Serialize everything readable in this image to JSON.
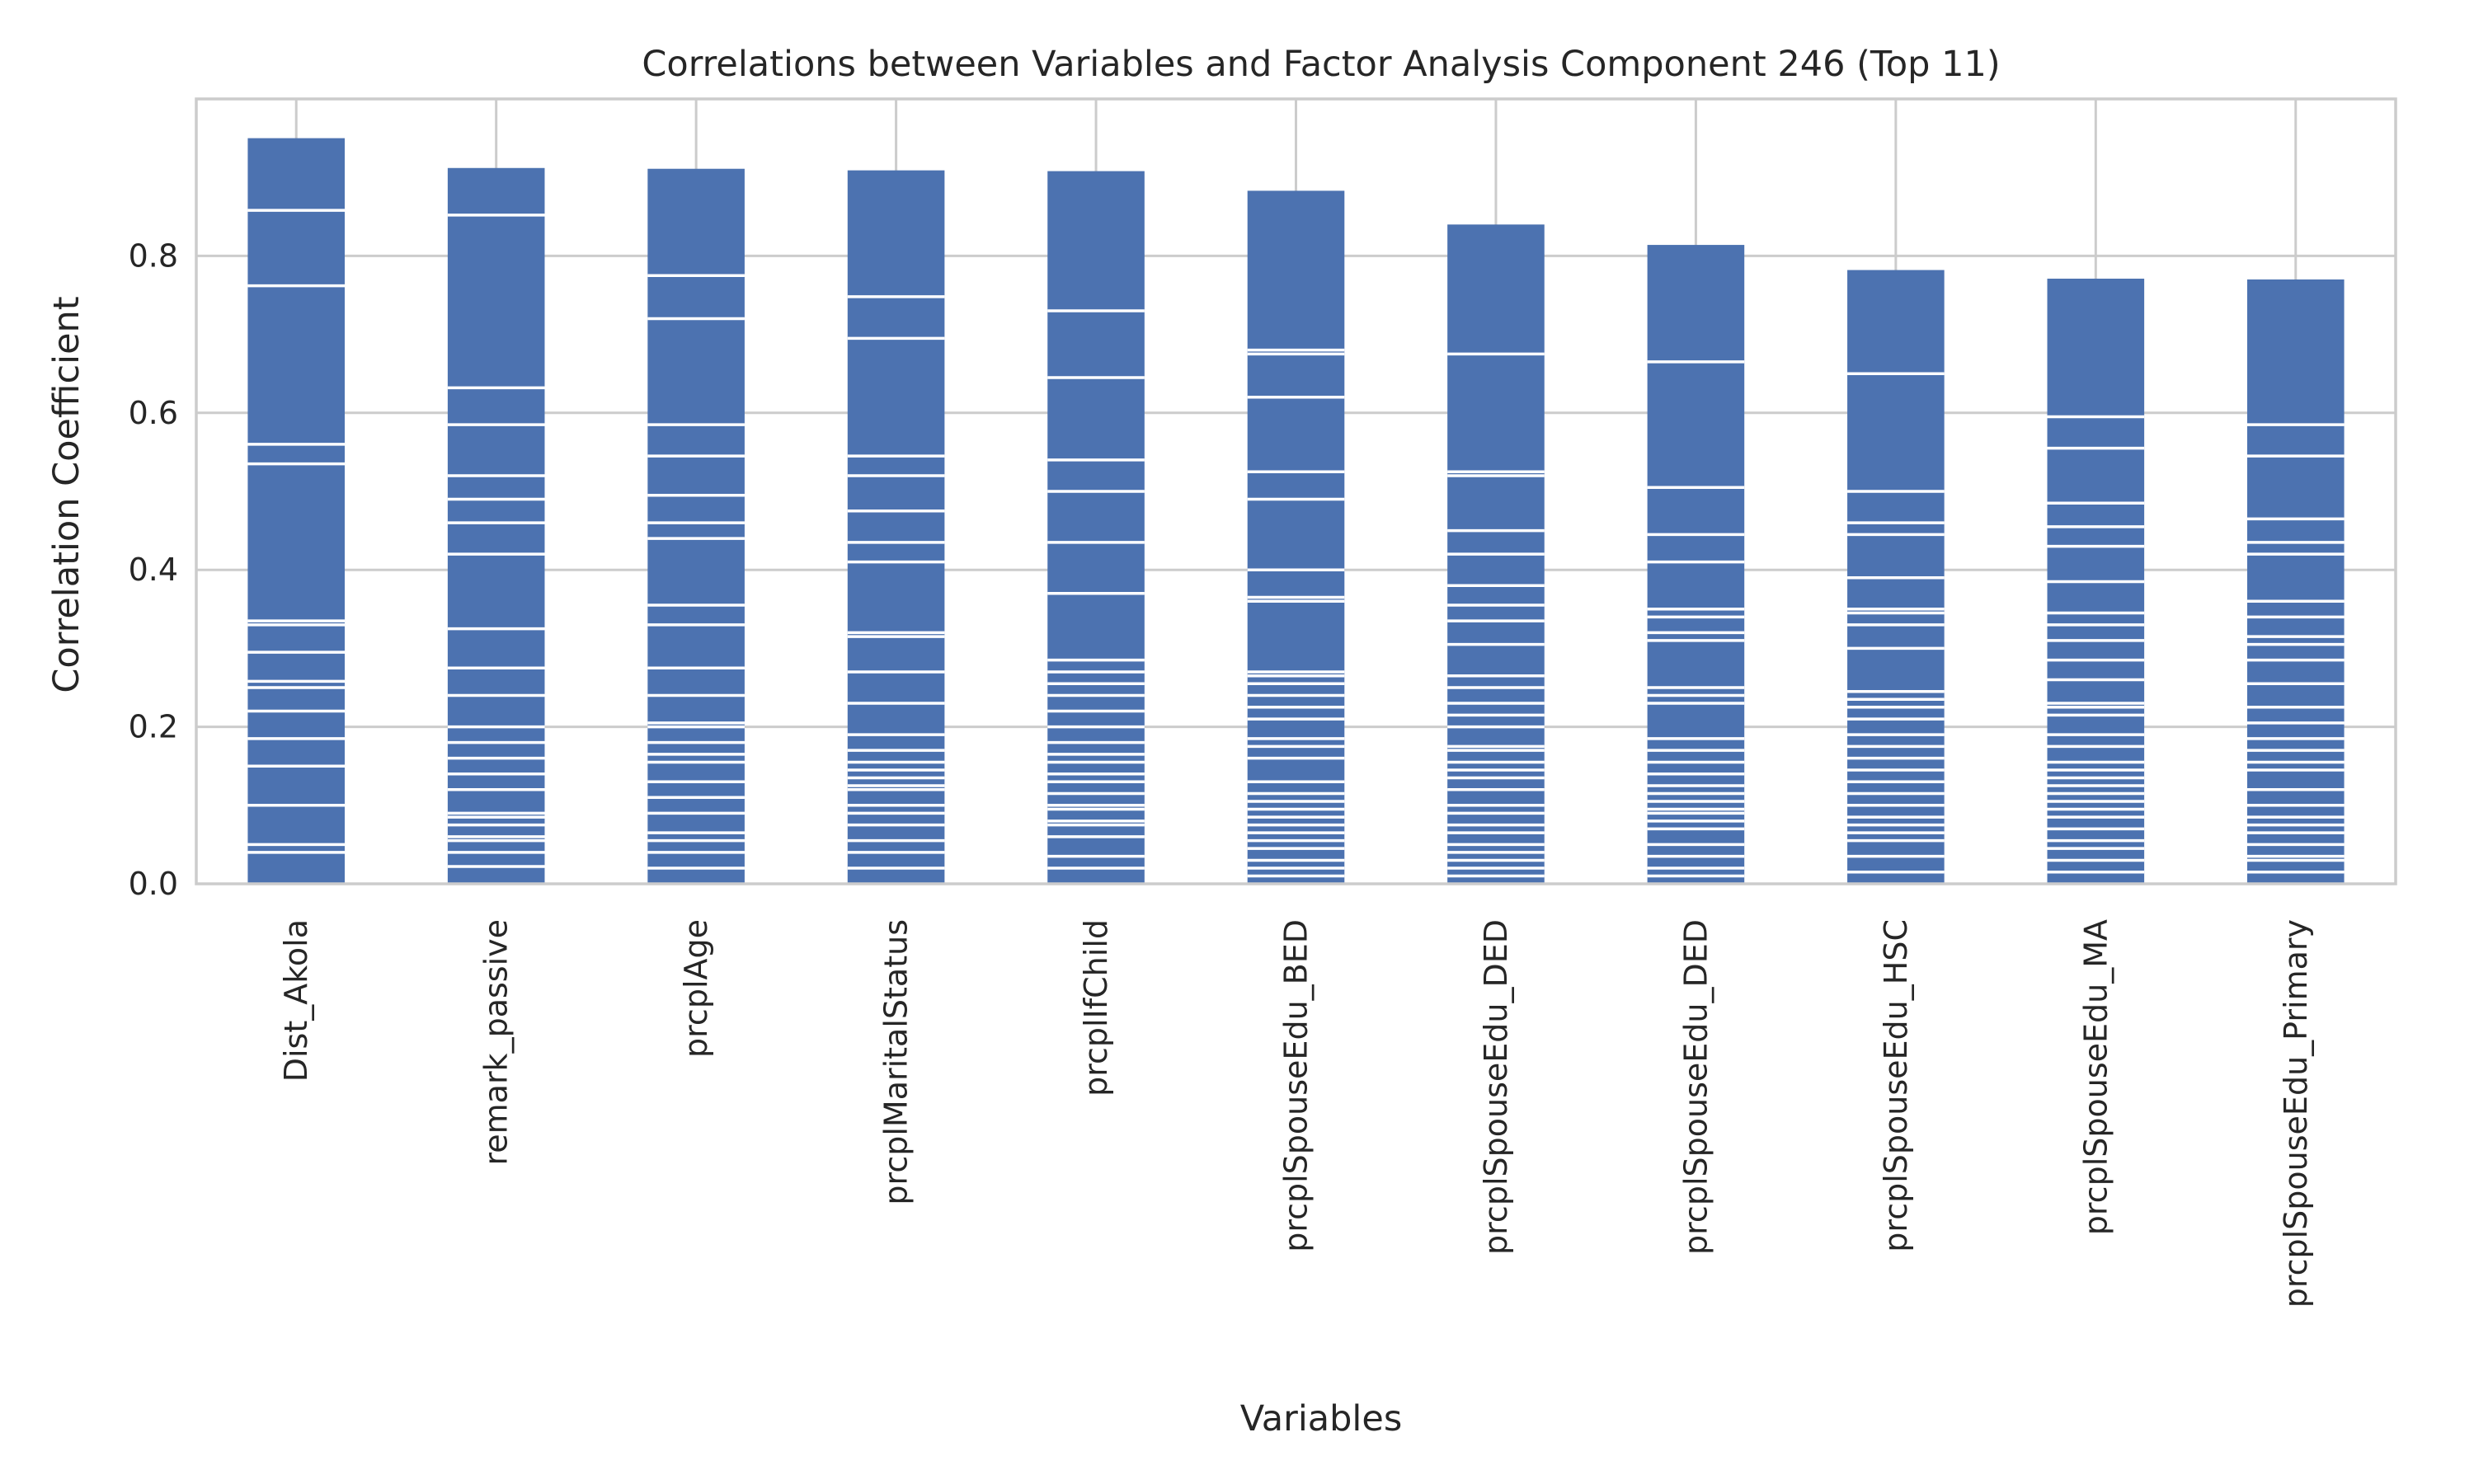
{
  "chart_data": {
    "type": "bar",
    "title": "Correlations between Variables and Factor Analysis Component 246 (Top 11)",
    "xlabel": "Variables",
    "ylabel": "Correlation Coefficient",
    "ylim": [
      0,
      1.0
    ],
    "yticks": [
      0.0,
      0.2,
      0.4,
      0.6,
      0.8
    ],
    "ytick_labels": [
      "0.0",
      "0.2",
      "0.4",
      "0.6",
      "0.8"
    ],
    "grid": true,
    "legend": "none",
    "color": "#4c72b0",
    "categories": [
      "Dist_Akola",
      "remark_passive",
      "prcplAge",
      "prcplMaritalStatus",
      "prcplIfChild",
      "prcplSpouseEdu_BED",
      "prcplSpouseEdu_DED",
      "prcplSpouseEdu_DED",
      "prcplSpouseEdu_HSC",
      "prcplSpouseEdu_MA",
      "prcplSpouseEdu_Primary"
    ],
    "values": [
      0.95,
      0.912,
      0.911,
      0.909,
      0.908,
      0.883,
      0.84,
      0.814,
      0.782,
      0.771,
      0.77
    ],
    "stack_boundaries": [
      [
        0.04,
        0.05,
        0.1,
        0.15,
        0.185,
        0.22,
        0.25,
        0.258,
        0.295,
        0.33,
        0.335,
        0.535,
        0.56,
        0.762,
        0.858
      ],
      [
        0.022,
        0.04,
        0.055,
        0.06,
        0.075,
        0.085,
        0.09,
        0.12,
        0.14,
        0.16,
        0.18,
        0.2,
        0.24,
        0.275,
        0.325,
        0.42,
        0.46,
        0.49,
        0.52,
        0.585,
        0.632,
        0.852
      ],
      [
        0.02,
        0.04,
        0.055,
        0.065,
        0.09,
        0.11,
        0.13,
        0.155,
        0.165,
        0.18,
        0.2,
        0.205,
        0.24,
        0.275,
        0.33,
        0.355,
        0.44,
        0.46,
        0.495,
        0.545,
        0.585,
        0.72,
        0.775
      ],
      [
        0.02,
        0.04,
        0.055,
        0.075,
        0.09,
        0.1,
        0.12,
        0.125,
        0.135,
        0.145,
        0.155,
        0.17,
        0.19,
        0.23,
        0.27,
        0.315,
        0.32,
        0.41,
        0.435,
        0.475,
        0.52,
        0.545,
        0.695,
        0.748
      ],
      [
        0.02,
        0.035,
        0.06,
        0.075,
        0.08,
        0.095,
        0.1,
        0.115,
        0.13,
        0.14,
        0.155,
        0.165,
        0.18,
        0.2,
        0.22,
        0.24,
        0.255,
        0.27,
        0.285,
        0.37,
        0.435,
        0.5,
        0.54,
        0.645,
        0.73
      ],
      [
        0.01,
        0.02,
        0.03,
        0.045,
        0.055,
        0.065,
        0.075,
        0.085,
        0.095,
        0.105,
        0.115,
        0.13,
        0.16,
        0.175,
        0.185,
        0.21,
        0.225,
        0.24,
        0.255,
        0.265,
        0.27,
        0.36,
        0.365,
        0.4,
        0.49,
        0.525,
        0.62,
        0.675,
        0.68
      ],
      [
        0.01,
        0.02,
        0.03,
        0.04,
        0.05,
        0.065,
        0.075,
        0.09,
        0.1,
        0.12,
        0.135,
        0.145,
        0.155,
        0.17,
        0.175,
        0.2,
        0.215,
        0.23,
        0.25,
        0.265,
        0.305,
        0.335,
        0.355,
        0.38,
        0.42,
        0.45,
        0.52,
        0.525,
        0.675
      ],
      [
        0.01,
        0.02,
        0.035,
        0.05,
        0.07,
        0.08,
        0.09,
        0.095,
        0.105,
        0.115,
        0.125,
        0.14,
        0.155,
        0.17,
        0.185,
        0.23,
        0.24,
        0.25,
        0.31,
        0.32,
        0.34,
        0.35,
        0.41,
        0.445,
        0.505,
        0.665
      ],
      [
        0.015,
        0.035,
        0.055,
        0.065,
        0.075,
        0.085,
        0.1,
        0.115,
        0.13,
        0.145,
        0.16,
        0.175,
        0.19,
        0.21,
        0.225,
        0.235,
        0.245,
        0.3,
        0.33,
        0.345,
        0.35,
        0.39,
        0.445,
        0.46,
        0.5,
        0.65
      ],
      [
        0.015,
        0.03,
        0.045,
        0.055,
        0.07,
        0.085,
        0.095,
        0.105,
        0.115,
        0.125,
        0.135,
        0.145,
        0.155,
        0.175,
        0.19,
        0.215,
        0.225,
        0.23,
        0.26,
        0.285,
        0.31,
        0.33,
        0.345,
        0.385,
        0.43,
        0.455,
        0.485,
        0.555,
        0.595
      ],
      [
        0.015,
        0.03,
        0.035,
        0.05,
        0.065,
        0.075,
        0.085,
        0.1,
        0.12,
        0.145,
        0.155,
        0.17,
        0.185,
        0.205,
        0.225,
        0.255,
        0.285,
        0.305,
        0.315,
        0.34,
        0.36,
        0.42,
        0.435,
        0.465,
        0.545,
        0.585
      ]
    ]
  }
}
